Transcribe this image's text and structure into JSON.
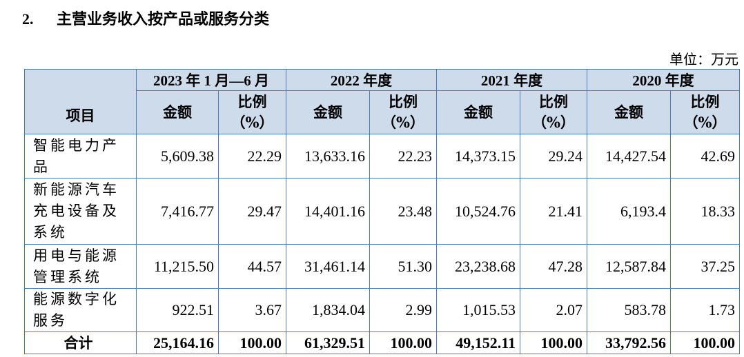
{
  "heading": {
    "number": "2.",
    "title": "主营业务收入按产品或服务分类"
  },
  "unit_label": "单位：万元",
  "table": {
    "item_header": "项目",
    "periods": [
      "2023 年 1 月—6 月",
      "2022 年度",
      "2021 年度",
      "2020 年度"
    ],
    "amount_header": "金额",
    "ratio_header_line1": "比例",
    "ratio_header_line2": "（%）",
    "rows": [
      {
        "name": "智能电力产品",
        "values": [
          "5,609.38",
          "22.29",
          "13,633.16",
          "22.23",
          "14,373.15",
          "29.24",
          "14,427.54",
          "42.69"
        ]
      },
      {
        "name": "新能源汽车充电设备及系统",
        "values": [
          "7,416.77",
          "29.47",
          "14,401.16",
          "23.48",
          "10,524.76",
          "21.41",
          "6,193.4",
          "18.33"
        ]
      },
      {
        "name": "用电与能源管理系统",
        "values": [
          "11,215.50",
          "44.57",
          "31,461.14",
          "51.30",
          "23,238.68",
          "47.28",
          "12,587.84",
          "37.25"
        ]
      },
      {
        "name": "能源数字化服务",
        "values": [
          "922.51",
          "3.67",
          "1,834.04",
          "2.99",
          "1,015.53",
          "2.07",
          "583.78",
          "1.73"
        ]
      }
    ],
    "total": {
      "name": "合计",
      "values": [
        "25,164.16",
        "100.00",
        "61,329.51",
        "100.00",
        "49,152.11",
        "100.00",
        "33,792.56",
        "100.00"
      ]
    }
  }
}
